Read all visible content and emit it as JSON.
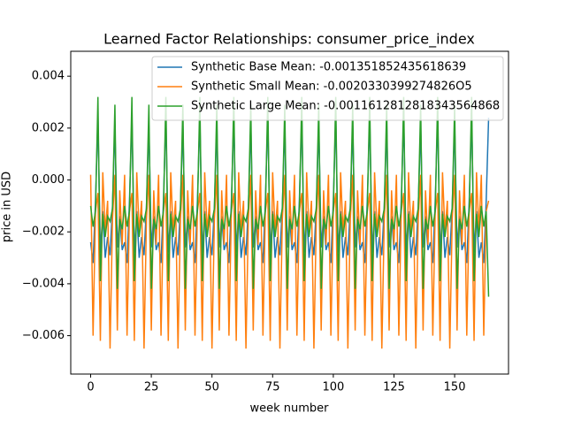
{
  "chart_data": {
    "type": "line",
    "title": "Learned Factor Relationships: consumer_price_index",
    "xlabel": "week number",
    "ylabel": "price in USD",
    "xlim": [
      -8.2,
      172.2
    ],
    "ylim": [
      -0.00748,
      0.00496
    ],
    "xticks": [
      0,
      25,
      50,
      75,
      100,
      125,
      150
    ],
    "yticks": [
      {
        "value": -0.006,
        "label": "−0.006"
      },
      {
        "value": -0.004,
        "label": "−0.004"
      },
      {
        "value": -0.002,
        "label": "−0.002"
      },
      {
        "value": 0,
        "label": "0.000"
      },
      {
        "value": 0.002,
        "label": "0.002"
      },
      {
        "value": 0.004,
        "label": "0.004"
      }
    ],
    "legend": "upper right",
    "x": [
      0,
      1,
      2,
      3,
      4,
      5,
      6,
      7,
      8,
      9,
      10,
      11,
      12,
      13,
      14,
      15,
      16,
      17,
      18,
      19,
      20,
      21,
      22,
      23,
      24,
      25,
      26,
      27,
      28,
      29,
      30,
      31,
      32,
      33,
      34,
      35,
      36,
      37,
      38,
      39,
      40,
      41,
      42,
      43,
      44,
      45,
      46,
      47,
      48,
      49,
      50,
      51,
      52,
      53,
      54,
      55,
      56,
      57,
      58,
      59,
      60,
      61,
      62,
      63,
      64,
      65,
      66,
      67,
      68,
      69,
      70,
      71,
      72,
      73,
      74,
      75,
      76,
      77,
      78,
      79,
      80,
      81,
      82,
      83,
      84,
      85,
      86,
      87,
      88,
      89,
      90,
      91,
      92,
      93,
      94,
      95,
      96,
      97,
      98,
      99,
      100,
      101,
      102,
      103,
      104,
      105,
      106,
      107,
      108,
      109,
      110,
      111,
      112,
      113,
      114,
      115,
      116,
      117,
      118,
      119,
      120,
      121,
      122,
      123,
      124,
      125,
      126,
      127,
      128,
      129,
      130,
      131,
      132,
      133,
      134,
      135,
      136,
      137,
      138,
      139,
      140,
      141,
      142,
      143,
      144,
      145,
      146,
      147,
      148,
      149,
      150,
      151,
      152,
      153,
      154,
      155,
      156,
      157,
      158,
      159,
      160,
      161,
      162,
      163,
      164
    ],
    "series": [
      {
        "name": "Synthetic Base Mean: -0.001351852435618639",
        "color": "#1f77b4",
        "values": [
          -0.0024,
          -0.0032,
          -0.0008,
          0.0024,
          -0.0028,
          -0.0012,
          -0.003,
          -0.0022,
          -0.0029,
          -0.001,
          0.0021,
          -0.0026,
          -0.0014,
          -0.0027,
          -0.0024,
          -0.0032,
          -0.0008,
          0.0024,
          -0.0028,
          -0.0012,
          -0.003,
          -0.0022,
          -0.0029,
          -0.001,
          0.0021,
          -0.0026,
          -0.0014,
          -0.0027,
          -0.0024,
          -0.0032,
          -0.0008,
          0.0024,
          -0.0028,
          -0.0012,
          -0.003,
          -0.0022,
          -0.0029,
          -0.001,
          0.0021,
          -0.0026,
          -0.0014,
          -0.0027,
          -0.0024,
          -0.0032,
          -0.0008,
          0.0024,
          -0.0028,
          -0.0012,
          -0.003,
          -0.0022,
          -0.0029,
          -0.001,
          0.0021,
          -0.0026,
          -0.0014,
          -0.0027,
          -0.0024,
          -0.0032,
          -0.0008,
          0.0024,
          -0.0028,
          -0.0012,
          -0.003,
          -0.0022,
          -0.0029,
          -0.001,
          0.0021,
          -0.0026,
          -0.0014,
          -0.0027,
          -0.0024,
          -0.0032,
          -0.0008,
          0.0024,
          -0.0028,
          -0.0012,
          -0.003,
          -0.0022,
          -0.0029,
          -0.001,
          0.0021,
          -0.0026,
          -0.0014,
          -0.0027,
          -0.0024,
          -0.0032,
          -0.0008,
          0.0024,
          -0.0028,
          -0.0012,
          -0.003,
          -0.0022,
          -0.0029,
          -0.001,
          0.0021,
          -0.0026,
          -0.0014,
          -0.0027,
          -0.0024,
          -0.0032,
          -0.0008,
          0.0024,
          -0.0028,
          -0.0012,
          -0.003,
          -0.0022,
          -0.0029,
          -0.001,
          0.0021,
          -0.0026,
          -0.0014,
          -0.0027,
          -0.0024,
          -0.0032,
          -0.0008,
          0.0024,
          -0.0028,
          -0.0012,
          -0.003,
          -0.0022,
          -0.0029,
          -0.001,
          0.0021,
          -0.0026,
          -0.0014,
          -0.0027,
          -0.0024,
          -0.0032,
          -0.0008,
          0.0024,
          -0.0028,
          -0.0012,
          -0.003,
          -0.0022,
          -0.0029,
          -0.001,
          0.0021,
          -0.0026,
          -0.0014,
          -0.0027,
          -0.0024,
          -0.0032,
          -0.0008,
          0.0024,
          -0.0028,
          -0.0012,
          -0.003,
          -0.0022,
          -0.0029,
          -0.001,
          0.0021,
          -0.0026,
          -0.0014,
          -0.0027,
          -0.0024,
          -0.0032,
          -0.0008,
          0.0024,
          -0.0028,
          -0.0012,
          -0.003,
          -0.0024,
          -0.0032,
          -0.0008,
          0.0024
        ]
      },
      {
        "name": "Synthetic Small Mean: -0.0020330399274826O5",
        "color": "#ff7f0e",
        "values": [
          0.0002,
          -0.006,
          -0.0012,
          -0.0005,
          -0.0062,
          0.0003,
          -0.002,
          -0.0008,
          -0.0065,
          -0.0015,
          0.0002,
          -0.0058,
          -0.0004,
          -0.0025,
          0.0002,
          -0.006,
          -0.0012,
          -0.0005,
          -0.0062,
          0.0003,
          -0.002,
          -0.0008,
          -0.0065,
          -0.0015,
          0.0002,
          -0.0058,
          -0.0004,
          -0.0025,
          0.0002,
          -0.006,
          -0.0012,
          -0.0005,
          -0.0062,
          0.0003,
          -0.002,
          -0.0008,
          -0.0065,
          -0.0015,
          0.0002,
          -0.0058,
          -0.0004,
          -0.0025,
          0.0002,
          -0.006,
          -0.0012,
          -0.0005,
          -0.0062,
          0.0003,
          -0.002,
          -0.0008,
          -0.0065,
          -0.0015,
          0.0002,
          -0.0058,
          -0.0004,
          -0.0025,
          0.0002,
          -0.006,
          -0.0012,
          -0.0005,
          -0.0062,
          0.0003,
          -0.002,
          -0.0008,
          -0.0065,
          -0.0015,
          0.0002,
          -0.0058,
          -0.0004,
          -0.0025,
          0.0002,
          -0.006,
          -0.0012,
          -0.0005,
          -0.0062,
          0.0003,
          -0.002,
          -0.0008,
          -0.0065,
          -0.0015,
          0.0002,
          -0.0058,
          -0.0004,
          -0.0025,
          0.0002,
          -0.006,
          -0.0012,
          -0.0005,
          -0.0062,
          0.0003,
          -0.002,
          -0.0008,
          -0.0065,
          -0.0015,
          0.0002,
          -0.0058,
          -0.0004,
          -0.0025,
          0.0002,
          -0.006,
          -0.0012,
          -0.0005,
          -0.0062,
          0.0003,
          -0.002,
          -0.0008,
          -0.0065,
          -0.0015,
          0.0002,
          -0.0058,
          -0.0004,
          -0.0025,
          0.0002,
          -0.006,
          -0.0012,
          -0.0005,
          -0.0062,
          0.0003,
          -0.002,
          -0.0008,
          -0.0065,
          -0.0015,
          0.0002,
          -0.0058,
          -0.0004,
          -0.0025,
          0.0002,
          -0.006,
          -0.0012,
          -0.0005,
          -0.0062,
          0.0003,
          -0.002,
          -0.0008,
          -0.0065,
          -0.0015,
          0.0002,
          -0.0058,
          -0.0004,
          -0.0025,
          0.0002,
          -0.006,
          -0.0012,
          -0.0005,
          -0.0062,
          0.0003,
          -0.002,
          -0.0008,
          -0.0065,
          -0.0015,
          0.0002,
          -0.0058,
          -0.0004,
          -0.0025,
          0.0002,
          -0.006,
          -0.0012,
          -0.0005,
          -0.0062,
          0.0003,
          -0.002,
          0.0002,
          -0.006,
          -0.0012,
          -0.0008
        ]
      },
      {
        "name": "Synthetic Large Mean: -0.0011612812818343564868",
        "color": "#2ca02c",
        "values": [
          -0.001,
          -0.0018,
          -0.0012,
          0.0032,
          -0.0039,
          -0.0013,
          -0.0022,
          -0.0014,
          -0.0016,
          -0.0011,
          0.0029,
          -0.0042,
          -0.0015,
          -0.0019,
          -0.001,
          -0.0018,
          -0.0012,
          0.0032,
          -0.0039,
          -0.0013,
          -0.0022,
          -0.0014,
          -0.0016,
          -0.0011,
          0.0029,
          -0.0042,
          -0.0015,
          -0.0019,
          -0.001,
          -0.0018,
          -0.0012,
          0.0032,
          -0.0039,
          -0.0013,
          -0.0022,
          -0.0014,
          -0.0016,
          -0.0011,
          0.0029,
          -0.0042,
          -0.0015,
          -0.0019,
          -0.001,
          -0.0018,
          -0.0012,
          0.0032,
          -0.0039,
          -0.0013,
          -0.0022,
          -0.0014,
          -0.0016,
          -0.0011,
          0.0029,
          -0.0042,
          -0.0015,
          -0.0019,
          -0.001,
          -0.0018,
          -0.0012,
          0.0032,
          -0.0039,
          -0.0013,
          -0.0022,
          -0.0014,
          -0.0016,
          -0.0011,
          0.0029,
          -0.0042,
          -0.0015,
          -0.0019,
          -0.001,
          -0.0018,
          -0.0012,
          0.0032,
          -0.0039,
          -0.0013,
          -0.0022,
          -0.0014,
          -0.0016,
          -0.0011,
          0.0029,
          -0.0042,
          -0.0015,
          -0.0019,
          -0.001,
          -0.0018,
          -0.0012,
          0.0032,
          -0.0039,
          -0.0013,
          -0.0022,
          -0.0014,
          -0.0016,
          -0.0011,
          0.0029,
          -0.0042,
          -0.0015,
          -0.0019,
          -0.001,
          -0.0018,
          -0.0012,
          0.0032,
          -0.0039,
          -0.0013,
          -0.0022,
          -0.0014,
          -0.0016,
          -0.0011,
          0.0029,
          -0.0042,
          -0.0015,
          -0.0019,
          -0.001,
          -0.0018,
          -0.0012,
          0.0032,
          -0.0039,
          -0.0013,
          -0.0022,
          -0.0014,
          -0.0016,
          -0.0011,
          0.0029,
          -0.0042,
          -0.0015,
          -0.0019,
          -0.001,
          -0.0018,
          -0.0012,
          0.0032,
          -0.0039,
          -0.0013,
          -0.0022,
          -0.0014,
          -0.0016,
          -0.0011,
          0.0029,
          -0.0042,
          -0.0015,
          -0.0019,
          -0.001,
          -0.0018,
          -0.0012,
          0.0032,
          -0.0039,
          -0.0013,
          -0.0022,
          -0.0014,
          -0.0016,
          -0.0011,
          0.0029,
          -0.0042,
          -0.0015,
          -0.0019,
          -0.001,
          -0.0018,
          -0.0012,
          0.0032,
          -0.0039,
          -0.0013,
          -0.0022,
          -0.001,
          -0.0018,
          -0.0012,
          -0.0045
        ]
      }
    ]
  }
}
